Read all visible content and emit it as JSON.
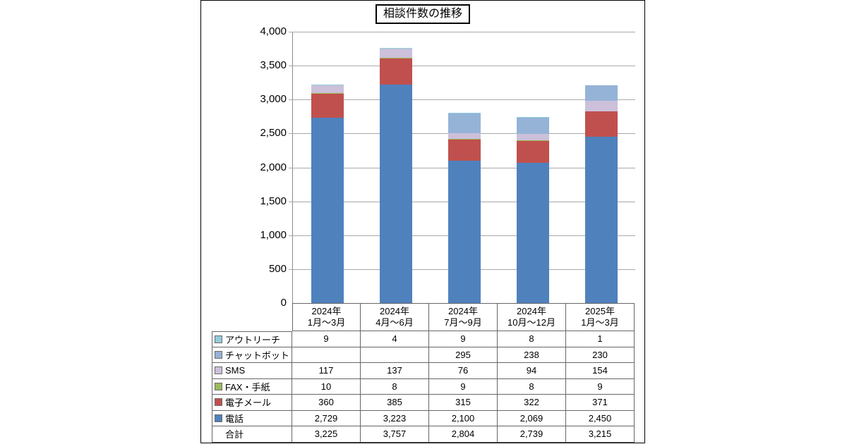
{
  "title": "相談件数の推移",
  "chart_data": {
    "type": "bar",
    "subtype": "stacked",
    "title": "相談件数の推移",
    "categories": [
      [
        "2024年",
        "1月〜3月"
      ],
      [
        "2024年",
        "4月〜6月"
      ],
      [
        "2024年",
        "7月〜9月"
      ],
      [
        "2024年",
        "10月〜12月"
      ],
      [
        "2025年",
        "1月〜3月"
      ]
    ],
    "series": [
      {
        "name": "アウトリーチ",
        "color": "#92CDDC",
        "values": [
          9,
          4,
          9,
          8,
          1
        ]
      },
      {
        "name": "チャットボット",
        "color": "#95B3D7",
        "values": [
          null,
          null,
          295,
          238,
          230
        ]
      },
      {
        "name": "SMS",
        "color": "#CCC0DA",
        "values": [
          117,
          137,
          76,
          94,
          154
        ]
      },
      {
        "name": "FAX・手紙",
        "color": "#9BBB59",
        "values": [
          10,
          8,
          9,
          8,
          9
        ]
      },
      {
        "name": "電子メール",
        "color": "#C0504D",
        "values": [
          360,
          385,
          315,
          322,
          371
        ]
      },
      {
        "name": "電話",
        "color": "#4F81BD",
        "values": [
          2729,
          3223,
          2100,
          2069,
          2450
        ]
      }
    ],
    "stack_order_bottom_to_top": [
      "電話",
      "電子メール",
      "FAX・手紙",
      "SMS",
      "チャットボット",
      "アウトリーチ"
    ],
    "totals_row": {
      "label": "合計",
      "values": [
        3225,
        3757,
        2804,
        2739,
        3215
      ]
    },
    "y_axis": {
      "min": 0,
      "max": 4000,
      "step": 500,
      "tick_labels": [
        "0",
        "500",
        "1,000",
        "1,500",
        "2,000",
        "2,500",
        "3,000",
        "3,500",
        "4,000"
      ]
    },
    "grid": true,
    "legend_position": "table-left",
    "xlabel": "",
    "ylabel": ""
  }
}
